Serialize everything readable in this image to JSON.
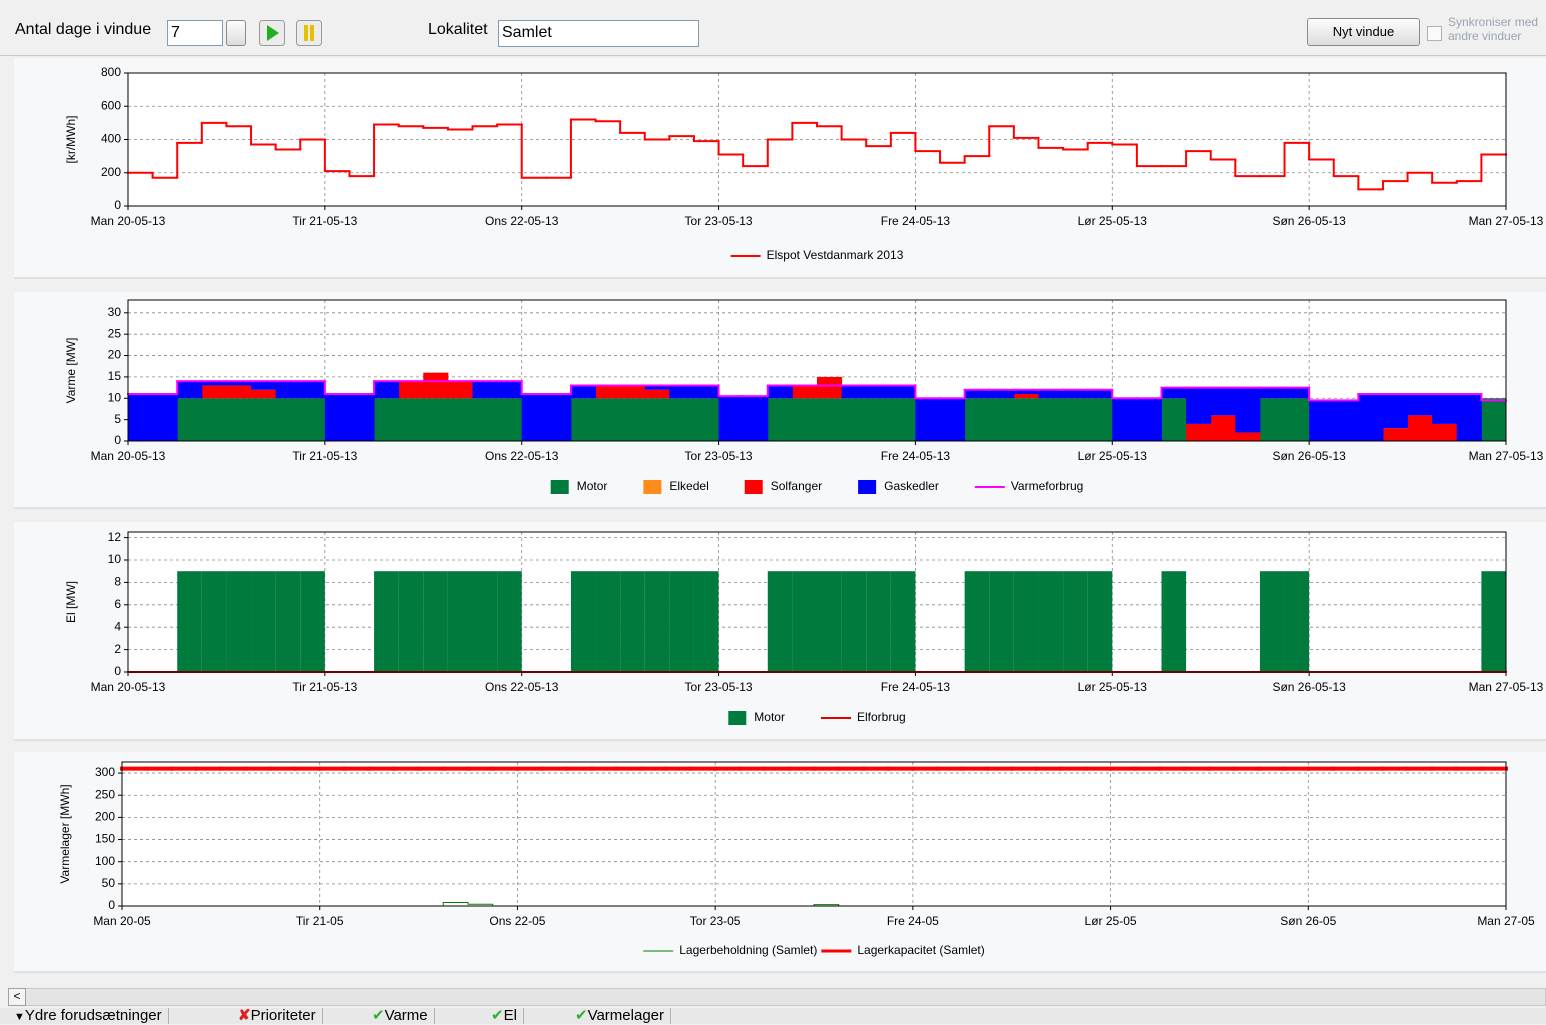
{
  "toolbar": {
    "days_label": "Antal dage i vindue",
    "days_value": "7",
    "location_label": "Lokalitet",
    "location_value": "Samlet",
    "new_window_button": "Nyt vindue",
    "sync_label": "Synkroniser med andre vinduer"
  },
  "tabs": [
    "Ydre forudsætninger",
    "Prioriteter",
    "Varme",
    "El",
    "Varmelager"
  ],
  "chart_data": [
    {
      "type": "line",
      "ylabel": "[kr/MWh]",
      "grid": true,
      "x": [
        0,
        3,
        6,
        9,
        12,
        15,
        18,
        21,
        24,
        27,
        30,
        33,
        36,
        39,
        42,
        45,
        48,
        51,
        54,
        57,
        60,
        63,
        66,
        69,
        72,
        75,
        78,
        81,
        84,
        87,
        90,
        93,
        96,
        99,
        102,
        105,
        108,
        111,
        114,
        117,
        120,
        123,
        126,
        129,
        132,
        135,
        138,
        141,
        144,
        147,
        150,
        153,
        156,
        159,
        162,
        165
      ],
      "xlim": [
        0,
        168
      ],
      "xticks": [
        {
          "value": 0,
          "label": "Man 20-05-13"
        },
        {
          "value": 24,
          "label": "Tir 21-05-13"
        },
        {
          "value": 48,
          "label": "Ons 22-05-13"
        },
        {
          "value": 72,
          "label": "Tor 23-05-13"
        },
        {
          "value": 96,
          "label": "Fre 24-05-13"
        },
        {
          "value": 120,
          "label": "Lør 25-05-13"
        },
        {
          "value": 144,
          "label": "Søn 26-05-13"
        },
        {
          "value": 168,
          "label": "Man 27-05-13"
        }
      ],
      "ylim": [
        0,
        800
      ],
      "yticks": [
        0,
        200,
        400,
        600,
        800
      ],
      "series": [
        {
          "name": "Elspot Vestdanmark 2013",
          "color": "#ff0000",
          "linewidth": 2,
          "values": [
            200,
            170,
            380,
            500,
            480,
            370,
            340,
            400,
            210,
            180,
            490,
            480,
            470,
            460,
            480,
            490,
            170,
            170,
            520,
            510,
            440,
            400,
            420,
            390,
            310,
            240,
            400,
            500,
            480,
            400,
            360,
            440,
            330,
            260,
            300,
            480,
            410,
            350,
            340,
            380,
            370,
            240,
            240,
            330,
            280,
            180,
            180,
            380,
            280,
            180,
            100,
            150,
            200,
            140,
            150,
            310
          ]
        }
      ]
    },
    {
      "type": "area",
      "ylabel": "Varme [MW]",
      "grid": true,
      "x": [
        0,
        3,
        6,
        9,
        12,
        15,
        18,
        21,
        24,
        27,
        30,
        33,
        36,
        39,
        42,
        45,
        48,
        51,
        54,
        57,
        60,
        63,
        66,
        69,
        72,
        75,
        78,
        81,
        84,
        87,
        90,
        93,
        96,
        99,
        102,
        105,
        108,
        111,
        114,
        117,
        120,
        123,
        126,
        129,
        132,
        135,
        138,
        141,
        144,
        147,
        150,
        153,
        156,
        159,
        162,
        165
      ],
      "xlim": [
        0,
        168
      ],
      "xticks": [
        {
          "value": 0,
          "label": "Man 20-05-13"
        },
        {
          "value": 24,
          "label": "Tir 21-05-13"
        },
        {
          "value": 48,
          "label": "Ons 22-05-13"
        },
        {
          "value": 72,
          "label": "Tor 23-05-13"
        },
        {
          "value": 96,
          "label": "Fre 24-05-13"
        },
        {
          "value": 120,
          "label": "Lør 25-05-13"
        },
        {
          "value": 144,
          "label": "Søn 26-05-13"
        },
        {
          "value": 168,
          "label": "Man 27-05-13"
        }
      ],
      "ylim": [
        0,
        33
      ],
      "yticks": [
        0,
        5,
        10,
        15,
        20,
        25,
        30
      ],
      "series": [
        {
          "name": "Motor",
          "color": "#007a3d",
          "values": [
            0,
            0,
            10,
            10,
            10,
            10,
            10,
            10,
            0,
            0,
            10,
            10,
            10,
            10,
            10,
            10,
            0,
            0,
            10,
            10,
            10,
            10,
            10,
            10,
            0,
            0,
            10,
            10,
            10,
            10,
            10,
            10,
            0,
            0,
            10,
            10,
            10,
            10,
            10,
            10,
            0,
            0,
            10,
            0,
            0,
            0,
            10,
            10,
            0,
            0,
            0,
            0,
            0,
            0,
            0,
            10
          ]
        },
        {
          "name": "Elkedel",
          "color": "#ff8c1a",
          "values": [
            0,
            0,
            0,
            0,
            0,
            0,
            0,
            0,
            0,
            0,
            0,
            0,
            0,
            0,
            0,
            0,
            0,
            0,
            0,
            0,
            0,
            0,
            0,
            0,
            0,
            0,
            0,
            0,
            0,
            0,
            0,
            0,
            0,
            0,
            0,
            0,
            0,
            0,
            0,
            0,
            0,
            0,
            0,
            0,
            0,
            0,
            0,
            0,
            0,
            0,
            0,
            0,
            0,
            0,
            0,
            0
          ]
        },
        {
          "name": "Solfanger",
          "color": "#ff0000",
          "values": [
            0,
            0,
            0,
            3,
            3,
            2,
            0,
            0,
            0,
            0,
            0,
            4,
            6,
            4,
            0,
            0,
            0,
            0,
            0,
            3,
            3,
            2,
            0,
            0,
            0,
            0,
            0,
            3,
            5,
            0,
            0,
            0,
            0,
            0,
            0,
            0,
            1,
            0,
            0,
            0,
            0,
            0,
            0,
            4,
            6,
            2,
            0,
            0,
            0,
            0,
            0,
            3,
            6,
            4,
            0,
            0
          ]
        },
        {
          "name": "Gaskedler",
          "color": "#0000ff",
          "values": [
            11,
            11,
            4,
            1,
            1,
            2,
            4,
            4,
            11,
            11,
            4,
            0,
            0,
            0,
            4,
            4,
            11,
            11,
            3,
            0,
            0,
            1,
            3,
            3,
            10.5,
            10.5,
            3,
            0,
            0,
            3,
            3,
            3,
            10,
            10,
            2,
            2,
            1,
            2,
            2,
            2,
            10,
            10,
            2.5,
            8.5,
            6.5,
            10.5,
            2.5,
            2.5,
            9.5,
            9.5,
            11,
            8,
            5,
            7,
            11,
            0
          ]
        },
        {
          "name": "Varmeforbrug",
          "color": "#ff00ff",
          "type": "line",
          "linewidth": 2,
          "values": [
            11,
            11,
            14,
            14,
            14,
            14,
            14,
            14,
            11,
            11,
            14,
            14,
            14,
            14,
            14,
            14,
            11,
            11,
            13,
            13,
            13,
            13,
            13,
            13,
            10.5,
            10.5,
            13,
            13,
            13,
            13,
            13,
            13,
            10,
            10,
            12,
            12,
            12,
            12,
            12,
            12,
            10,
            10,
            12.5,
            12.5,
            12.5,
            12.5,
            12.5,
            12.5,
            9.5,
            9.5,
            11,
            11,
            11,
            11,
            11,
            9.5
          ]
        }
      ]
    },
    {
      "type": "bar",
      "ylabel": "El [MW]",
      "grid": true,
      "x": [
        0,
        3,
        6,
        9,
        12,
        15,
        18,
        21,
        24,
        27,
        30,
        33,
        36,
        39,
        42,
        45,
        48,
        51,
        54,
        57,
        60,
        63,
        66,
        69,
        72,
        75,
        78,
        81,
        84,
        87,
        90,
        93,
        96,
        99,
        102,
        105,
        108,
        111,
        114,
        117,
        120,
        123,
        126,
        129,
        132,
        135,
        138,
        141,
        144,
        147,
        150,
        153,
        156,
        159,
        162,
        165
      ],
      "xlim": [
        0,
        168
      ],
      "xticks": [
        {
          "value": 0,
          "label": "Man 20-05-13"
        },
        {
          "value": 24,
          "label": "Tir 21-05-13"
        },
        {
          "value": 48,
          "label": "Ons 22-05-13"
        },
        {
          "value": 72,
          "label": "Tor 23-05-13"
        },
        {
          "value": 96,
          "label": "Fre 24-05-13"
        },
        {
          "value": 120,
          "label": "Lør 25-05-13"
        },
        {
          "value": 144,
          "label": "Søn 26-05-13"
        },
        {
          "value": 168,
          "label": "Man 27-05-13"
        }
      ],
      "ylim": [
        0,
        12.5
      ],
      "yticks": [
        0,
        2,
        4,
        6,
        8,
        10,
        12
      ],
      "series": [
        {
          "name": "Motor",
          "color": "#007a3d",
          "values": [
            0,
            0,
            9,
            9,
            9,
            9,
            9,
            9,
            0,
            0,
            9,
            9,
            9,
            9,
            9,
            9,
            0,
            0,
            9,
            9,
            9,
            9,
            9,
            9,
            0,
            0,
            9,
            9,
            9,
            9,
            9,
            9,
            0,
            0,
            9,
            9,
            9,
            9,
            9,
            9,
            0,
            0,
            9,
            0,
            0,
            0,
            9,
            9,
            0,
            0,
            0,
            0,
            0,
            0,
            0,
            9
          ]
        },
        {
          "name": "Elforbrug",
          "color": "#e00000",
          "type": "line",
          "linewidth": 2,
          "values": [
            0,
            0,
            0,
            0,
            0,
            0,
            0,
            0,
            0,
            0,
            0,
            0,
            0,
            0,
            0,
            0,
            0,
            0,
            0,
            0,
            0,
            0,
            0,
            0,
            0,
            0,
            0,
            0,
            0,
            0,
            0,
            0,
            0,
            0,
            0,
            0,
            0,
            0,
            0,
            0,
            0,
            0,
            0,
            0,
            0,
            0,
            0,
            0,
            0,
            0,
            0,
            0,
            0,
            0,
            0,
            0
          ]
        }
      ]
    },
    {
      "type": "line",
      "ylabel": "Varmelager [MWh]",
      "grid": true,
      "x": [
        0,
        3,
        6,
        9,
        12,
        15,
        18,
        21,
        24,
        27,
        30,
        33,
        36,
        39,
        42,
        45,
        48,
        51,
        54,
        57,
        60,
        63,
        66,
        69,
        72,
        75,
        78,
        81,
        84,
        87,
        90,
        93,
        96,
        99,
        102,
        105,
        108,
        111,
        114,
        117,
        120,
        123,
        126,
        129,
        132,
        135,
        138,
        141,
        144,
        147,
        150,
        153,
        156,
        159,
        162,
        165
      ],
      "xlim": [
        0,
        168
      ],
      "xticks": [
        {
          "value": 0,
          "label": "Man 20-05"
        },
        {
          "value": 24,
          "label": "Tir 21-05"
        },
        {
          "value": 48,
          "label": "Ons 22-05"
        },
        {
          "value": 72,
          "label": "Tor 23-05"
        },
        {
          "value": 96,
          "label": "Fre 24-05"
        },
        {
          "value": 120,
          "label": "Lør 25-05"
        },
        {
          "value": 144,
          "label": "Søn 26-05"
        },
        {
          "value": 168,
          "label": "Man 27-05"
        }
      ],
      "ylim": [
        0,
        325
      ],
      "yticks": [
        0,
        50,
        100,
        150,
        200,
        250,
        300
      ],
      "series": [
        {
          "name": "Lagerbeholdning (Samlet)",
          "color": "#008000",
          "linewidth": 1,
          "values": [
            0,
            0,
            0,
            0,
            0,
            0,
            0,
            0,
            0,
            0,
            0,
            0,
            0,
            8,
            4,
            0,
            0,
            0,
            0,
            0,
            0,
            0,
            0,
            0,
            0,
            0,
            0,
            0,
            3,
            0,
            0,
            0,
            0,
            0,
            0,
            0,
            0,
            0,
            0,
            0,
            0,
            0,
            0,
            0,
            0,
            0,
            0,
            0,
            0,
            0,
            0,
            0,
            0,
            0,
            0,
            0
          ]
        },
        {
          "name": "Lagerkapacitet (Samlet)",
          "color": "#ff0000",
          "linewidth": 4,
          "values": [
            310,
            310,
            310,
            310,
            310,
            310,
            310,
            310,
            310,
            310,
            310,
            310,
            310,
            310,
            310,
            310,
            310,
            310,
            310,
            310,
            310,
            310,
            310,
            310,
            310,
            310,
            310,
            310,
            310,
            310,
            310,
            310,
            310,
            310,
            310,
            310,
            310,
            310,
            310,
            310,
            310,
            310,
            310,
            310,
            310,
            310,
            310,
            310,
            310,
            310,
            310,
            310,
            310,
            310,
            310,
            310
          ]
        }
      ]
    }
  ]
}
